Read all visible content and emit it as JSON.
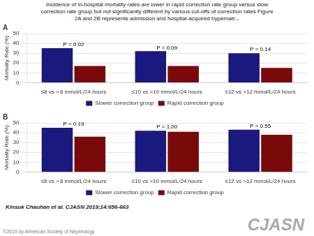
{
  "title": "Incidence of in-hospital mortality rates are lower in rapid correction rate group versus slow\ncorrection rate group but not significantly different by various cut-offs of correction rates Figure\n2A and 2B represents admission and hospital-acquired hypernatr...",
  "annotations": [
    "Kinsuk Chauhan et al. CJASN 2019;14:656-663",
    "CJASN",
    "©2019 by American Society of Nephrology"
  ],
  "chart_data": [
    {
      "type": "bar",
      "title": "A",
      "categories": [
        "≤8 vs > 8 mmol/L/24 hours",
        "≤10 vs >10 mmol/L/24 hours",
        "≤12 vs >12 mmol/L/24 hours"
      ],
      "series": [
        {
          "name": "Slower correction group",
          "color": "#1a1a7e",
          "values": [
            35,
            32,
            30
          ]
        },
        {
          "name": "Rapid correction group",
          "color": "#7a0a0a",
          "values": [
            17,
            17,
            15
          ]
        }
      ],
      "ylabel": "Mortality Rate (%)",
      "ylim": [
        0,
        50
      ],
      "yticks": [
        0,
        10,
        20,
        30,
        40,
        50
      ],
      "grid": true,
      "legend": "bottom",
      "annotations": [
        "P = 0.02",
        "P = 0.09",
        "P = 0.14"
      ]
    },
    {
      "type": "bar",
      "title": "B",
      "categories": [
        "≤8 vs > 8 mmol/L/24 hours",
        "≤10 vs >10 mmol/L/24 hours",
        "≤12 vs >12 mmol/L/24 hours"
      ],
      "series": [
        {
          "name": "Slower correction group",
          "color": "#1a1a7e",
          "values": [
            45,
            42,
            43
          ]
        },
        {
          "name": "Rapid correction group",
          "color": "#7a0a0a",
          "values": [
            36,
            41,
            38
          ]
        }
      ],
      "ylabel": "Mortality Rate (%)",
      "ylim": [
        0,
        50
      ],
      "yticks": [
        0,
        10,
        20,
        30,
        40,
        50
      ],
      "grid": true,
      "legend": "bottom",
      "annotations": [
        "P = 0.19",
        "P = 1.00",
        "P = 0.55"
      ]
    }
  ]
}
